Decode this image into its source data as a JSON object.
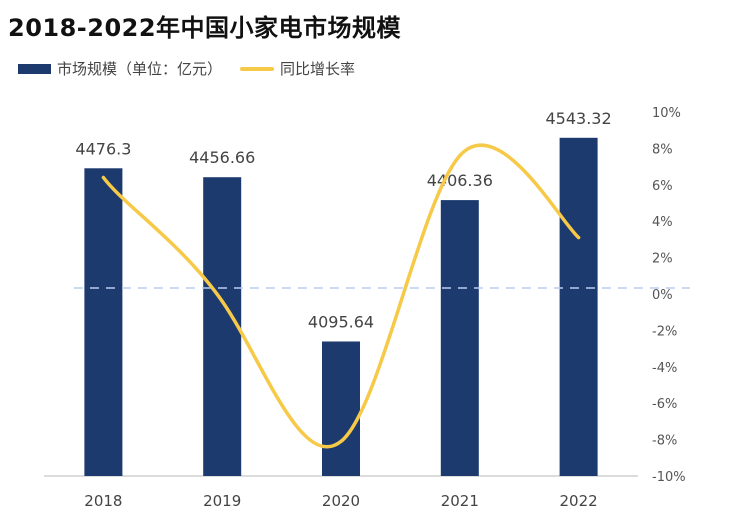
{
  "chart_data": {
    "type": "bar",
    "title": "2018-2022年中国小家电市场规模",
    "categories": [
      "2018",
      "2019",
      "2020",
      "2021",
      "2022"
    ],
    "series": [
      {
        "name": "市场规模（单位：亿元）",
        "type": "bar",
        "axis": "left",
        "values": [
          4476.3,
          4456.66,
          4095.64,
          4406.36,
          4543.32
        ],
        "labels": [
          "4476.3",
          "4456.66",
          "4095.64",
          "4406.36",
          "4543.32"
        ]
      },
      {
        "name": "同比增长率",
        "type": "line",
        "axis": "right",
        "values": [
          6.4,
          -0.4,
          -8.1,
          7.6,
          3.1
        ]
      }
    ],
    "ylim_left": [
      3800,
      4600
    ],
    "ylim_right": [
      -10,
      10
    ],
    "right_ticks": [
      "10%",
      "8%",
      "6%",
      "4%",
      "2%",
      "0%",
      "-2%",
      "-4%",
      "-6%",
      "-8%",
      "-10%"
    ],
    "legend": "top-left",
    "colors": {
      "bar": "#1c3a6e",
      "line": "#f7c948",
      "zero_line": "#b9cdf2"
    }
  }
}
